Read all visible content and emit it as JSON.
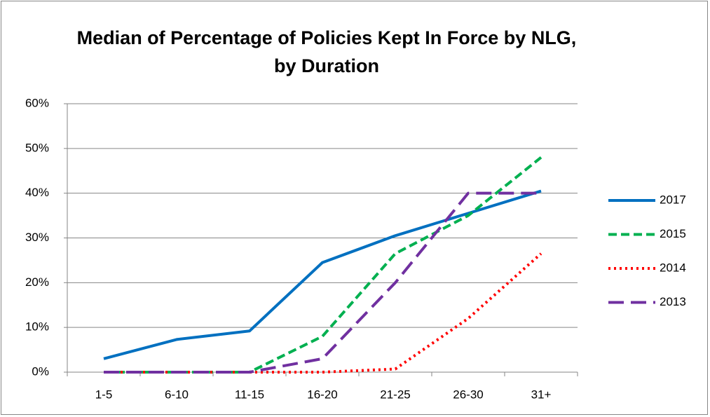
{
  "chart_data": {
    "type": "line",
    "title": "Median of Percentage of Policies Kept In Force by NLG, by Duration",
    "categories": [
      "1-5",
      "6-10",
      "11-15",
      "16-20",
      "21-25",
      "26-30",
      "31+"
    ],
    "series": [
      {
        "name": "2017",
        "color": "#0070c0",
        "dash": "solid",
        "values": [
          3,
          7.3,
          9.2,
          24.5,
          30.5,
          35.5,
          40.5
        ]
      },
      {
        "name": "2015",
        "color": "#00b050",
        "dash": "dashed",
        "values": [
          0,
          0,
          0,
          8,
          26.5,
          35,
          48
        ]
      },
      {
        "name": "2014",
        "color": "#ff0000",
        "dash": "dotted",
        "values": [
          0,
          0,
          0,
          0,
          0.7,
          12,
          26.5
        ]
      },
      {
        "name": "2013",
        "color": "#7030a0",
        "dash": "longdash",
        "values": [
          0,
          0,
          0,
          3,
          20,
          40,
          40
        ]
      }
    ],
    "ylim": [
      0,
      60
    ],
    "yticks": [
      {
        "value": 0,
        "label": "0%"
      },
      {
        "value": 10,
        "label": "10%"
      },
      {
        "value": 20,
        "label": "20%"
      },
      {
        "value": 30,
        "label": "30%"
      },
      {
        "value": 40,
        "label": "40%"
      },
      {
        "value": 50,
        "label": "50%"
      },
      {
        "value": 60,
        "label": "60%"
      }
    ],
    "grid": true,
    "legend": "right"
  }
}
